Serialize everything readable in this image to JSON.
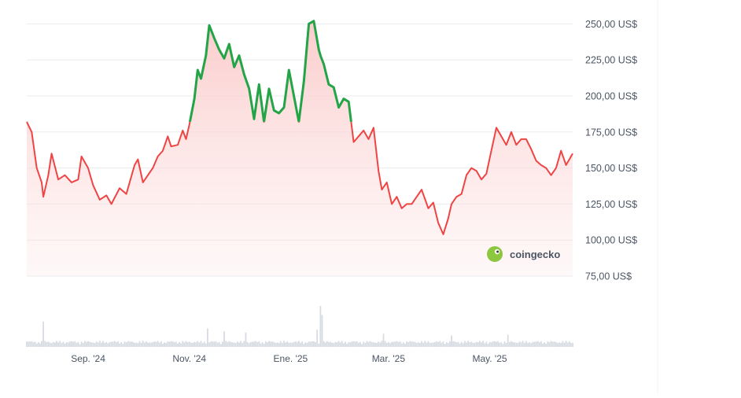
{
  "colors": {
    "up": "#22a447",
    "down": "#ef4444",
    "area_top": "#fbc9c9",
    "grid": "#e9ebef",
    "volume": "#d7dbe2",
    "axis_text": "#4b5563",
    "logo_green": "#8dc63f"
  },
  "watermark": {
    "brand": "coingecko",
    "icon": "gecko-logo-icon"
  },
  "chart_data": {
    "type": "line",
    "y_unit_suffix": " US$",
    "ylim": [
      75,
      260
    ],
    "yticks": [
      {
        "value": 250,
        "label": "250,00 US$"
      },
      {
        "value": 225,
        "label": "225,00 US$"
      },
      {
        "value": 200,
        "label": "200,00 US$"
      },
      {
        "value": 175,
        "label": "175,00 US$"
      },
      {
        "value": 150,
        "label": "150,00 US$"
      },
      {
        "value": 125,
        "label": "125,00 US$"
      },
      {
        "value": 100,
        "label": "100,00 US$"
      },
      {
        "value": 75,
        "label": "75,00 US$"
      }
    ],
    "xlim": [
      "2024-07-26",
      "2025-06-20"
    ],
    "xticks": [
      {
        "date": "2024-09-01",
        "label": "Sep. '24"
      },
      {
        "date": "2024-11-01",
        "label": "Nov. '24"
      },
      {
        "date": "2025-01-01",
        "label": "Ene. '25"
      },
      {
        "date": "2025-03-01",
        "label": "Mar. '25"
      },
      {
        "date": "2025-05-01",
        "label": "May. '25"
      }
    ],
    "grid": true,
    "series": [
      {
        "x": [
          "2024-07-26",
          "2024-07-29",
          "2024-08-01",
          "2024-08-04",
          "2024-08-05",
          "2024-08-08",
          "2024-08-10",
          "2024-08-14",
          "2024-08-18",
          "2024-08-22",
          "2024-08-26",
          "2024-08-28",
          "2024-09-01",
          "2024-09-04",
          "2024-09-06",
          "2024-09-08",
          "2024-09-12",
          "2024-09-15",
          "2024-09-20",
          "2024-09-24",
          "2024-09-26",
          "2024-09-29",
          "2024-10-01",
          "2024-10-04",
          "2024-10-07",
          "2024-10-10",
          "2024-10-13",
          "2024-10-16",
          "2024-10-19",
          "2024-10-21",
          "2024-10-25",
          "2024-10-28",
          "2024-10-30",
          "2024-11-01",
          "2024-11-04",
          "2024-11-06",
          "2024-11-08",
          "2024-11-11",
          "2024-11-13",
          "2024-11-16",
          "2024-11-19",
          "2024-11-22",
          "2024-11-25",
          "2024-11-28",
          "2024-12-01",
          "2024-12-04",
          "2024-12-07",
          "2024-12-10",
          "2024-12-13",
          "2024-12-16",
          "2024-12-19",
          "2024-12-22",
          "2024-12-25",
          "2024-12-28",
          "2024-12-31",
          "2025-01-03",
          "2025-01-06",
          "2025-01-09",
          "2025-01-12",
          "2025-01-15",
          "2025-01-18",
          "2025-01-19",
          "2025-01-21",
          "2025-01-24",
          "2025-01-27",
          "2025-01-30",
          "2025-02-02",
          "2025-02-05",
          "2025-02-08",
          "2025-02-11",
          "2025-02-14",
          "2025-02-17",
          "2025-02-20",
          "2025-02-23",
          "2025-02-25",
          "2025-02-28",
          "2025-03-03",
          "2025-03-06",
          "2025-03-09",
          "2025-03-12",
          "2025-03-15",
          "2025-03-18",
          "2025-03-21",
          "2025-03-25",
          "2025-03-28",
          "2025-03-31",
          "2025-04-03",
          "2025-04-06",
          "2025-04-08",
          "2025-04-11",
          "2025-04-14",
          "2025-04-17",
          "2025-04-20",
          "2025-04-23",
          "2025-04-26",
          "2025-04-29",
          "2025-05-02",
          "2025-05-05",
          "2025-05-08",
          "2025-05-11",
          "2025-05-14",
          "2025-05-17",
          "2025-05-20",
          "2025-05-23",
          "2025-05-26",
          "2025-05-29",
          "2025-06-01",
          "2025-06-04",
          "2025-06-07",
          "2025-06-10",
          "2025-06-13",
          "2025-06-16",
          "2025-06-19",
          "2025-06-20"
        ],
        "y": [
          182,
          175,
          150,
          140,
          130,
          145,
          160,
          142,
          145,
          140,
          142,
          158,
          150,
          138,
          133,
          128,
          131,
          125,
          136,
          132,
          140,
          152,
          156,
          140,
          145,
          150,
          158,
          162,
          172,
          165,
          166,
          176,
          170,
          180,
          198,
          218,
          212,
          228,
          249,
          240,
          232,
          226,
          236,
          220,
          228,
          215,
          205,
          184,
          208,
          182,
          205,
          190,
          188,
          192,
          218,
          200,
          182,
          210,
          250,
          252,
          232,
          228,
          222,
          208,
          206,
          192,
          198,
          196,
          168,
          172,
          176,
          170,
          178,
          148,
          135,
          140,
          125,
          130,
          122,
          125,
          125,
          130,
          135,
          122,
          126,
          112,
          104,
          115,
          125,
          130,
          132,
          145,
          150,
          148,
          142,
          146,
          162,
          178,
          172,
          166,
          175,
          166,
          170,
          170,
          163,
          155,
          152,
          150,
          145,
          150,
          162,
          152,
          158,
          160
        ]
      }
    ],
    "volume": [
      {
        "date": "2024-08-05",
        "value": 0.62
      },
      {
        "date": "2024-11-12",
        "value": 0.45
      },
      {
        "date": "2024-11-22",
        "value": 0.38
      },
      {
        "date": "2024-12-05",
        "value": 0.35
      },
      {
        "date": "2025-01-17",
        "value": 0.42
      },
      {
        "date": "2025-01-19",
        "value": 1.0
      },
      {
        "date": "2025-01-20",
        "value": 0.78
      },
      {
        "date": "2025-02-26",
        "value": 0.32
      },
      {
        "date": "2025-04-08",
        "value": 0.28
      },
      {
        "date": "2025-05-12",
        "value": 0.3
      }
    ]
  }
}
